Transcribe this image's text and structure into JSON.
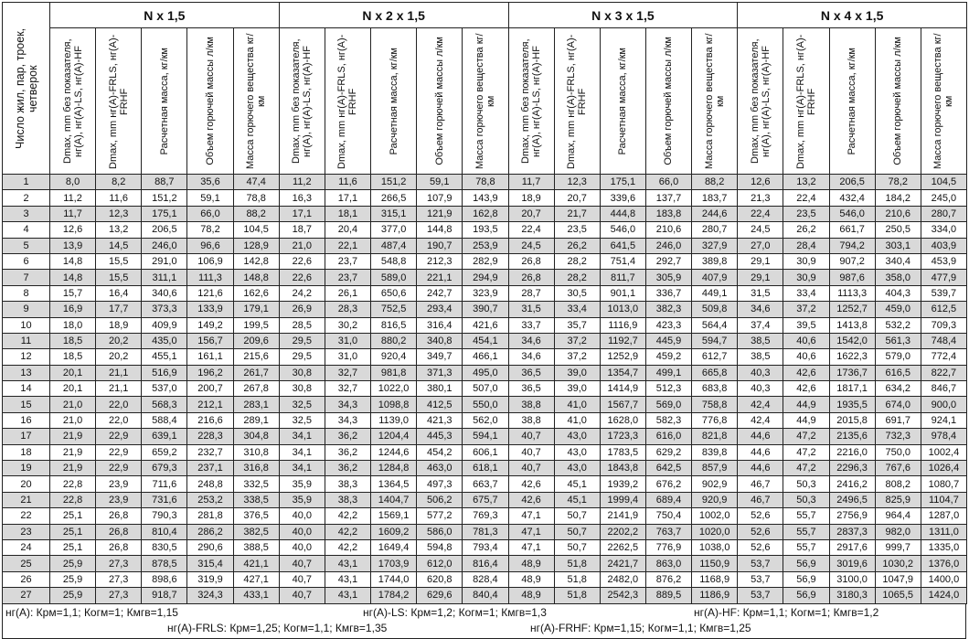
{
  "header": {
    "row_header": "Число жил, пар, троек, четверок",
    "groups": [
      "N x 1,5",
      "N x 2 x 1,5",
      "N x 3 x 1,5",
      "N x 4 x 1,5"
    ],
    "columns": [
      "Dmax, mm без показателя, нг(А), нг(А)-LS, нг(А)-HF",
      "Dmax, mm нг(А)-FRLS, нг(А)-FRHF",
      "Расчетная масса, кг/км",
      "Объем горючей массы л/км",
      "Масса горючего вещества кг/км"
    ]
  },
  "rows": [
    [
      "1",
      "8,0",
      "8,2",
      "88,7",
      "35,6",
      "47,4",
      "11,2",
      "11,6",
      "151,2",
      "59,1",
      "78,8",
      "11,7",
      "12,3",
      "175,1",
      "66,0",
      "88,2",
      "12,6",
      "13,2",
      "206,5",
      "78,2",
      "104,5"
    ],
    [
      "2",
      "11,2",
      "11,6",
      "151,2",
      "59,1",
      "78,8",
      "16,3",
      "17,1",
      "266,5",
      "107,9",
      "143,9",
      "18,9",
      "20,7",
      "339,6",
      "137,7",
      "183,7",
      "21,3",
      "22,4",
      "432,4",
      "184,2",
      "245,0"
    ],
    [
      "3",
      "11,7",
      "12,3",
      "175,1",
      "66,0",
      "88,2",
      "17,1",
      "18,1",
      "315,1",
      "121,9",
      "162,8",
      "20,7",
      "21,7",
      "444,8",
      "183,8",
      "244,6",
      "22,4",
      "23,5",
      "546,0",
      "210,6",
      "280,7"
    ],
    [
      "4",
      "12,6",
      "13,2",
      "206,5",
      "78,2",
      "104,5",
      "18,7",
      "20,4",
      "377,0",
      "144,8",
      "193,5",
      "22,4",
      "23,5",
      "546,0",
      "210,6",
      "280,7",
      "24,5",
      "26,2",
      "661,7",
      "250,5",
      "334,0"
    ],
    [
      "5",
      "13,9",
      "14,5",
      "246,0",
      "96,6",
      "128,9",
      "21,0",
      "22,1",
      "487,4",
      "190,7",
      "253,9",
      "24,5",
      "26,2",
      "641,5",
      "246,0",
      "327,9",
      "27,0",
      "28,4",
      "794,2",
      "303,1",
      "403,9"
    ],
    [
      "6",
      "14,8",
      "15,5",
      "291,0",
      "106,9",
      "142,8",
      "22,6",
      "23,7",
      "548,8",
      "212,3",
      "282,9",
      "26,8",
      "28,2",
      "751,4",
      "292,7",
      "389,8",
      "29,1",
      "30,9",
      "907,2",
      "340,4",
      "453,9"
    ],
    [
      "7",
      "14,8",
      "15,5",
      "311,1",
      "111,3",
      "148,8",
      "22,6",
      "23,7",
      "589,0",
      "221,1",
      "294,9",
      "26,8",
      "28,2",
      "811,7",
      "305,9",
      "407,9",
      "29,1",
      "30,9",
      "987,6",
      "358,0",
      "477,9"
    ],
    [
      "8",
      "15,7",
      "16,4",
      "340,6",
      "121,6",
      "162,6",
      "24,2",
      "26,1",
      "650,6",
      "242,7",
      "323,9",
      "28,7",
      "30,5",
      "901,1",
      "336,7",
      "449,1",
      "31,5",
      "33,4",
      "1113,3",
      "404,3",
      "539,7"
    ],
    [
      "9",
      "16,9",
      "17,7",
      "373,3",
      "133,9",
      "179,1",
      "26,9",
      "28,3",
      "752,5",
      "293,4",
      "390,7",
      "31,5",
      "33,4",
      "1013,0",
      "382,3",
      "509,8",
      "34,6",
      "37,2",
      "1252,7",
      "459,0",
      "612,5"
    ],
    [
      "10",
      "18,0",
      "18,9",
      "409,9",
      "149,2",
      "199,5",
      "28,5",
      "30,2",
      "816,5",
      "316,4",
      "421,6",
      "33,7",
      "35,7",
      "1116,9",
      "423,3",
      "564,4",
      "37,4",
      "39,5",
      "1413,8",
      "532,2",
      "709,3"
    ],
    [
      "11",
      "18,5",
      "20,2",
      "435,0",
      "156,7",
      "209,6",
      "29,5",
      "31,0",
      "880,2",
      "340,8",
      "454,1",
      "34,6",
      "37,2",
      "1192,7",
      "445,9",
      "594,7",
      "38,5",
      "40,6",
      "1542,0",
      "561,3",
      "748,4"
    ],
    [
      "12",
      "18,5",
      "20,2",
      "455,1",
      "161,1",
      "215,6",
      "29,5",
      "31,0",
      "920,4",
      "349,7",
      "466,1",
      "34,6",
      "37,2",
      "1252,9",
      "459,2",
      "612,7",
      "38,5",
      "40,6",
      "1622,3",
      "579,0",
      "772,4"
    ],
    [
      "13",
      "20,1",
      "21,1",
      "516,9",
      "196,2",
      "261,7",
      "30,8",
      "32,7",
      "981,8",
      "371,3",
      "495,0",
      "36,5",
      "39,0",
      "1354,7",
      "499,1",
      "665,8",
      "40,3",
      "42,6",
      "1736,7",
      "616,5",
      "822,7"
    ],
    [
      "14",
      "20,1",
      "21,1",
      "537,0",
      "200,7",
      "267,8",
      "30,8",
      "32,7",
      "1022,0",
      "380,1",
      "507,0",
      "36,5",
      "39,0",
      "1414,9",
      "512,3",
      "683,8",
      "40,3",
      "42,6",
      "1817,1",
      "634,2",
      "846,7"
    ],
    [
      "15",
      "21,0",
      "22,0",
      "568,3",
      "212,1",
      "283,1",
      "32,5",
      "34,3",
      "1098,8",
      "412,5",
      "550,0",
      "38,8",
      "41,0",
      "1567,7",
      "569,0",
      "758,8",
      "42,4",
      "44,9",
      "1935,5",
      "674,0",
      "900,0"
    ],
    [
      "16",
      "21,0",
      "22,0",
      "588,4",
      "216,6",
      "289,1",
      "32,5",
      "34,3",
      "1139,0",
      "421,3",
      "562,0",
      "38,8",
      "41,0",
      "1628,0",
      "582,3",
      "776,8",
      "42,4",
      "44,9",
      "2015,8",
      "691,7",
      "924,1"
    ],
    [
      "17",
      "21,9",
      "22,9",
      "639,1",
      "228,3",
      "304,8",
      "34,1",
      "36,2",
      "1204,4",
      "445,3",
      "594,1",
      "40,7",
      "43,0",
      "1723,3",
      "616,0",
      "821,8",
      "44,6",
      "47,2",
      "2135,6",
      "732,3",
      "978,4"
    ],
    [
      "18",
      "21,9",
      "22,9",
      "659,2",
      "232,7",
      "310,8",
      "34,1",
      "36,2",
      "1244,6",
      "454,2",
      "606,1",
      "40,7",
      "43,0",
      "1783,5",
      "629,2",
      "839,8",
      "44,6",
      "47,2",
      "2216,0",
      "750,0",
      "1002,4"
    ],
    [
      "19",
      "21,9",
      "22,9",
      "679,3",
      "237,1",
      "316,8",
      "34,1",
      "36,2",
      "1284,8",
      "463,0",
      "618,1",
      "40,7",
      "43,0",
      "1843,8",
      "642,5",
      "857,9",
      "44,6",
      "47,2",
      "2296,3",
      "767,6",
      "1026,4"
    ],
    [
      "20",
      "22,8",
      "23,9",
      "711,6",
      "248,8",
      "332,5",
      "35,9",
      "38,3",
      "1364,5",
      "497,3",
      "663,7",
      "42,6",
      "45,1",
      "1939,2",
      "676,2",
      "902,9",
      "46,7",
      "50,3",
      "2416,2",
      "808,2",
      "1080,7"
    ],
    [
      "21",
      "22,8",
      "23,9",
      "731,6",
      "253,2",
      "338,5",
      "35,9",
      "38,3",
      "1404,7",
      "506,2",
      "675,7",
      "42,6",
      "45,1",
      "1999,4",
      "689,4",
      "920,9",
      "46,7",
      "50,3",
      "2496,5",
      "825,9",
      "1104,7"
    ],
    [
      "22",
      "25,1",
      "26,8",
      "790,3",
      "281,8",
      "376,5",
      "40,0",
      "42,2",
      "1569,1",
      "577,2",
      "769,3",
      "47,1",
      "50,7",
      "2141,9",
      "750,4",
      "1002,0",
      "52,6",
      "55,7",
      "2756,9",
      "964,4",
      "1287,0"
    ],
    [
      "23",
      "25,1",
      "26,8",
      "810,4",
      "286,2",
      "382,5",
      "40,0",
      "42,2",
      "1609,2",
      "586,0",
      "781,3",
      "47,1",
      "50,7",
      "2202,2",
      "763,7",
      "1020,0",
      "52,6",
      "55,7",
      "2837,3",
      "982,0",
      "1311,0"
    ],
    [
      "24",
      "25,1",
      "26,8",
      "830,5",
      "290,6",
      "388,5",
      "40,0",
      "42,2",
      "1649,4",
      "594,8",
      "793,4",
      "47,1",
      "50,7",
      "2262,5",
      "776,9",
      "1038,0",
      "52,6",
      "55,7",
      "2917,6",
      "999,7",
      "1335,0"
    ],
    [
      "25",
      "25,9",
      "27,3",
      "878,5",
      "315,4",
      "421,1",
      "40,7",
      "43,1",
      "1703,9",
      "612,0",
      "816,4",
      "48,9",
      "51,8",
      "2421,7",
      "863,0",
      "1150,9",
      "53,7",
      "56,9",
      "3019,6",
      "1030,2",
      "1376,0"
    ],
    [
      "26",
      "25,9",
      "27,3",
      "898,6",
      "319,9",
      "427,1",
      "40,7",
      "43,1",
      "1744,0",
      "620,8",
      "828,4",
      "48,9",
      "51,8",
      "2482,0",
      "876,2",
      "1168,9",
      "53,7",
      "56,9",
      "3100,0",
      "1047,9",
      "1400,0"
    ],
    [
      "27",
      "25,9",
      "27,3",
      "918,7",
      "324,3",
      "433,1",
      "40,7",
      "43,1",
      "1784,2",
      "629,6",
      "840,4",
      "48,9",
      "51,8",
      "2542,3",
      "889,5",
      "1186,9",
      "53,7",
      "56,9",
      "3180,3",
      "1065,5",
      "1424,0"
    ]
  ],
  "footer": {
    "line1": [
      "нг(А): Крм=1,1;  Когм=1;  Кмгв=1,15",
      "нг(А)-LS: Крм=1,2;  Когм=1;  Кмгв=1,3",
      "нг(А)-HF: Крм=1,1;  Когм=1;  Кмгв=1,2"
    ],
    "line2": [
      "нг(А)-FRLS: Крм=1,25;  Когм=1,1;  Кмгв=1,35",
      "нг(А)-FRHF: Крм=1,15;  Когм=1,1;  Кмгв=1,25"
    ]
  },
  "colors": {
    "stripe": "#d9d9d9",
    "border": "#222222"
  }
}
